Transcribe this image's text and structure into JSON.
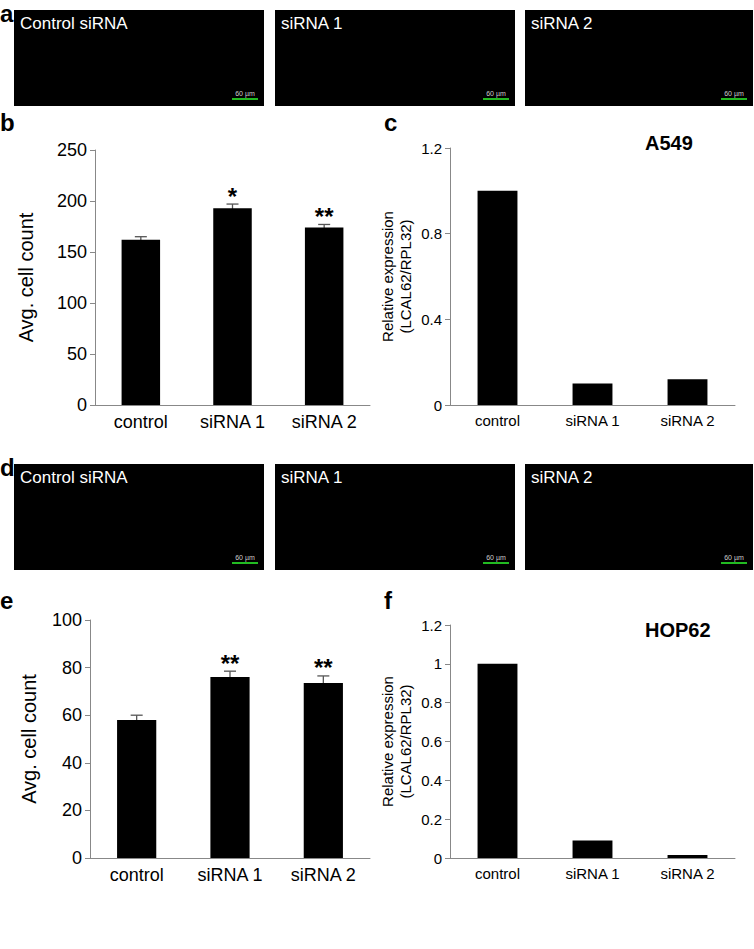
{
  "image_panels": [
    {
      "panel": "a",
      "images": [
        {
          "label": "Control siRNA",
          "scale_bar": "60 µm"
        },
        {
          "label": "siRNA 1",
          "scale_bar": "60 µm"
        },
        {
          "label": "siRNA 2",
          "scale_bar": "60 µm"
        }
      ]
    },
    {
      "panel": "d",
      "images": [
        {
          "label": "Control siRNA",
          "scale_bar": "60 µm"
        },
        {
          "label": "siRNA 1",
          "scale_bar": "60 µm"
        },
        {
          "label": "siRNA 2",
          "scale_bar": "60 µm"
        }
      ]
    }
  ],
  "chart_data": [
    {
      "panel": "b",
      "type": "bar",
      "y_label": "Avg. cell count",
      "categories": [
        "control",
        "siRNA 1",
        "siRNA 2"
      ],
      "values": [
        162,
        193,
        174
      ],
      "errors": [
        3,
        4,
        3
      ],
      "significance": [
        null,
        "*",
        "**"
      ],
      "color": "#000000",
      "ylim": [
        0,
        250
      ],
      "yticks": [
        0,
        50,
        100,
        150,
        200,
        250
      ],
      "grid": false
    },
    {
      "panel": "c",
      "type": "bar",
      "title": "A549",
      "y_label": "Relative expression\n(LCAL62/RPL32)",
      "categories": [
        "control",
        "siRNA 1",
        "siRNA 2"
      ],
      "values": [
        1.0,
        0.1,
        0.12
      ],
      "color": "#000000",
      "ylim": [
        0,
        1.2
      ],
      "yticks": [
        0,
        0.4,
        0.8,
        1.2
      ],
      "grid": false
    },
    {
      "panel": "e",
      "type": "bar",
      "y_label": "Avg. cell count",
      "categories": [
        "control",
        "siRNA 1",
        "siRNA 2"
      ],
      "values": [
        58,
        76,
        73.5
      ],
      "errors": [
        2,
        2.5,
        3
      ],
      "significance": [
        null,
        "**",
        "**"
      ],
      "color": "#000000",
      "ylim": [
        0,
        100
      ],
      "yticks": [
        0,
        20,
        40,
        60,
        80,
        100
      ],
      "grid": false
    },
    {
      "panel": "f",
      "type": "bar",
      "title": "HOP62",
      "y_label": "Relative expression\n(LCAL62/RPL32)",
      "categories": [
        "control",
        "siRNA 1",
        "siRNA 2"
      ],
      "values": [
        1.0,
        0.09,
        0.015
      ],
      "color": "#000000",
      "ylim": [
        0,
        1.2
      ],
      "yticks": [
        0,
        0.2,
        0.4,
        0.6,
        0.8,
        1.0,
        1.2
      ],
      "grid": false
    }
  ]
}
